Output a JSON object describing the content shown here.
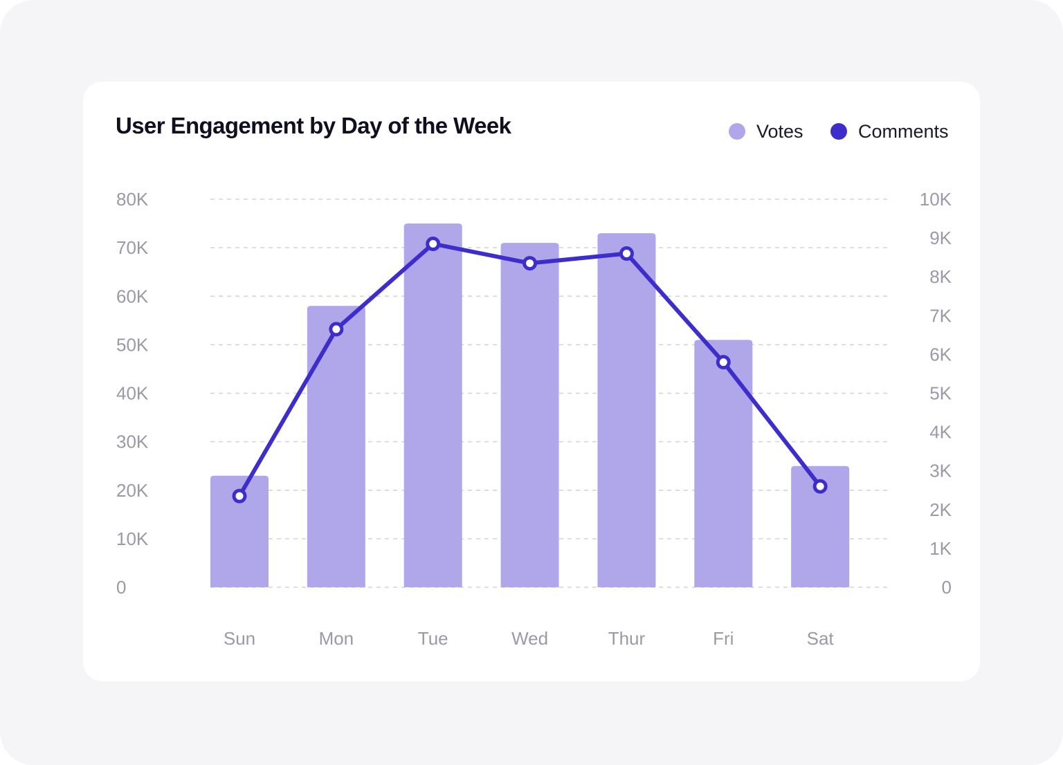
{
  "colors": {
    "page_bg": "#f5f5f7",
    "card_bg": "#ffffff",
    "votes": "#afa7ea",
    "comments": "#3d2ecc",
    "gridline": "#d2d2d8",
    "tick_text": "#9a9aa6"
  },
  "legend": {
    "votes_label": "Votes",
    "comments_label": "Comments"
  },
  "chart_data": {
    "type": "bar",
    "title": "User Engagement by Day of the Week",
    "categories": [
      "Sun",
      "Mon",
      "Tue",
      "Wed",
      "Thur",
      "Fri",
      "Sat"
    ],
    "series": [
      {
        "name": "Votes",
        "type": "bar",
        "axis": "left",
        "color": "#afa7ea",
        "values": [
          23000,
          58000,
          75000,
          71000,
          73000,
          51000,
          25000
        ]
      },
      {
        "name": "Comments",
        "type": "line",
        "axis": "right",
        "color": "#3d2ecc",
        "values": [
          2350,
          6650,
          8850,
          8350,
          8600,
          5800,
          2600
        ]
      }
    ],
    "y_left": {
      "ylim": [
        0,
        80000
      ],
      "ticks": [
        0,
        10000,
        20000,
        30000,
        40000,
        50000,
        60000,
        70000,
        80000
      ],
      "tick_labels": [
        "0",
        "10K",
        "20K",
        "30K",
        "40K",
        "50K",
        "60K",
        "70K",
        "80K"
      ]
    },
    "y_right": {
      "ylim": [
        0,
        10000
      ],
      "ticks": [
        0,
        1000,
        2000,
        3000,
        4000,
        5000,
        6000,
        7000,
        8000,
        9000,
        10000
      ],
      "tick_labels": [
        "0",
        "1K",
        "2K",
        "3K",
        "4K",
        "5K",
        "6K",
        "7K",
        "8K",
        "9K",
        "10K"
      ]
    },
    "xlabel": "",
    "ylabel": "",
    "grid": true,
    "legend_position": "top-right"
  }
}
